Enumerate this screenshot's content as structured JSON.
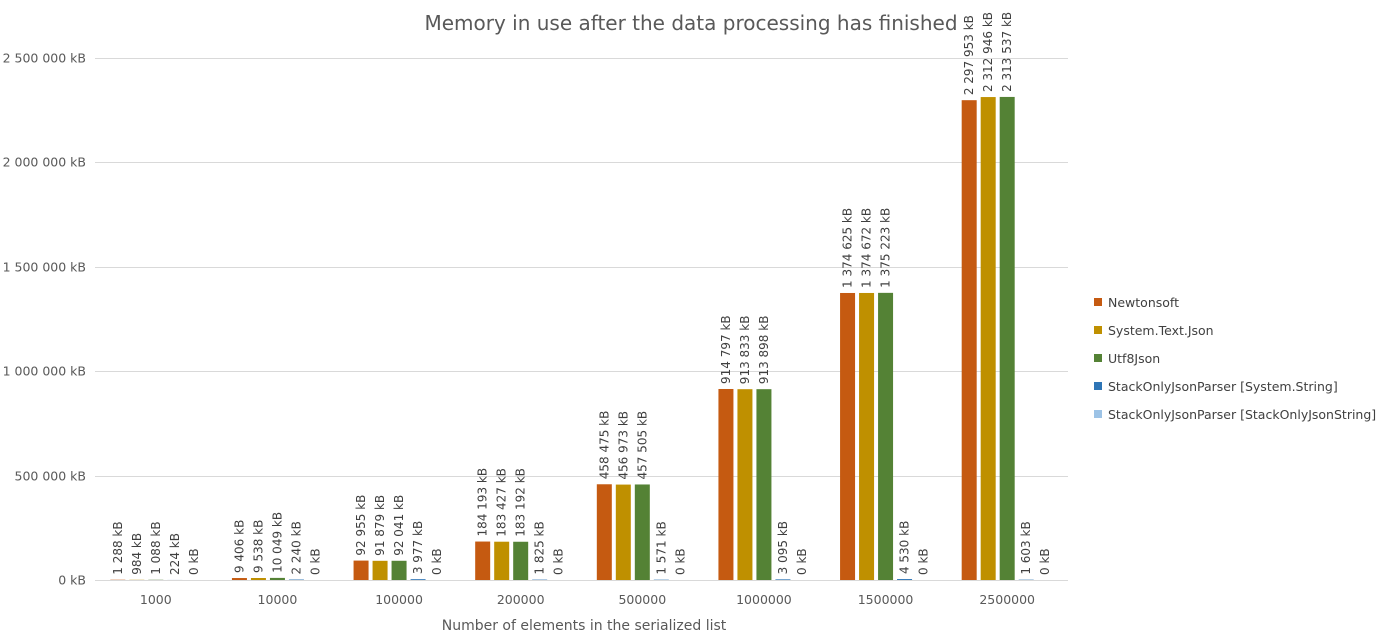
{
  "chart_data": {
    "type": "bar",
    "title": "Memory in use after the data processing has finished",
    "xlabel": "Number of elements in the serialized list",
    "ylabel": "",
    "unit": "kB",
    "ylim": [
      0,
      2500000
    ],
    "yticks": [
      0,
      500000,
      1000000,
      1500000,
      2000000,
      2500000
    ],
    "ytick_labels": [
      "0 kB",
      "500 000 kB",
      "1 000 000 kB",
      "1 500 000 kB",
      "2 000 000 kB",
      "2 500 000 kB"
    ],
    "grid": true,
    "legend_position": "right",
    "categories": [
      "1000",
      "10000",
      "100000",
      "200000",
      "500000",
      "1000000",
      "1500000",
      "2500000"
    ],
    "series": [
      {
        "name": "Newtonsoft",
        "color": "#C55A11",
        "values": [
          1288,
          9406,
          92955,
          184193,
          458475,
          914797,
          1374625,
          2297953
        ],
        "labels": [
          "1 288 kB",
          "9 406 kB",
          "92 955 kB",
          "184 193 kB",
          "458 475 kB",
          "914 797 kB",
          "1 374 625 kB",
          "2 297 953 kB"
        ]
      },
      {
        "name": "System.Text.Json",
        "color": "#BF9000",
        "values": [
          984,
          9538,
          91879,
          183427,
          456973,
          913833,
          1374672,
          2312946
        ],
        "labels": [
          "984 kB",
          "9 538 kB",
          "91 879 kB",
          "183 427 kB",
          "456 973 kB",
          "913 833 kB",
          "1 374 672 kB",
          "2 312 946 kB"
        ]
      },
      {
        "name": "Utf8Json",
        "color": "#548235",
        "values": [
          1088,
          10049,
          92041,
          183192,
          457505,
          913898,
          1375223,
          2313537
        ],
        "labels": [
          "1 088 kB",
          "10 049 kB",
          "92 041 kB",
          "183 192 kB",
          "457 505 kB",
          "913 898 kB",
          "1 375 223 kB",
          "2 313 537 kB"
        ]
      },
      {
        "name": "StackOnlyJsonParser [System.String]",
        "color": "#2E75B6",
        "values": [
          224,
          2240,
          3977,
          1825,
          1571,
          3095,
          4530,
          1603
        ],
        "labels": [
          "224 kB",
          "2 240 kB",
          "3 977 kB",
          "1 825 kB",
          "1 571 kB",
          "3 095 kB",
          "4 530 kB",
          "1 603 kB"
        ]
      },
      {
        "name": "StackOnlyJsonParser [StackOnlyJsonString]",
        "color": "#9DC3E6",
        "values": [
          0,
          0,
          0,
          0,
          0,
          0,
          0,
          0
        ],
        "labels": [
          "0 kB",
          "0 kB",
          "0 kB",
          "0 kB",
          "0 kB",
          "0 kB",
          "0 kB",
          "0 kB"
        ]
      }
    ]
  }
}
